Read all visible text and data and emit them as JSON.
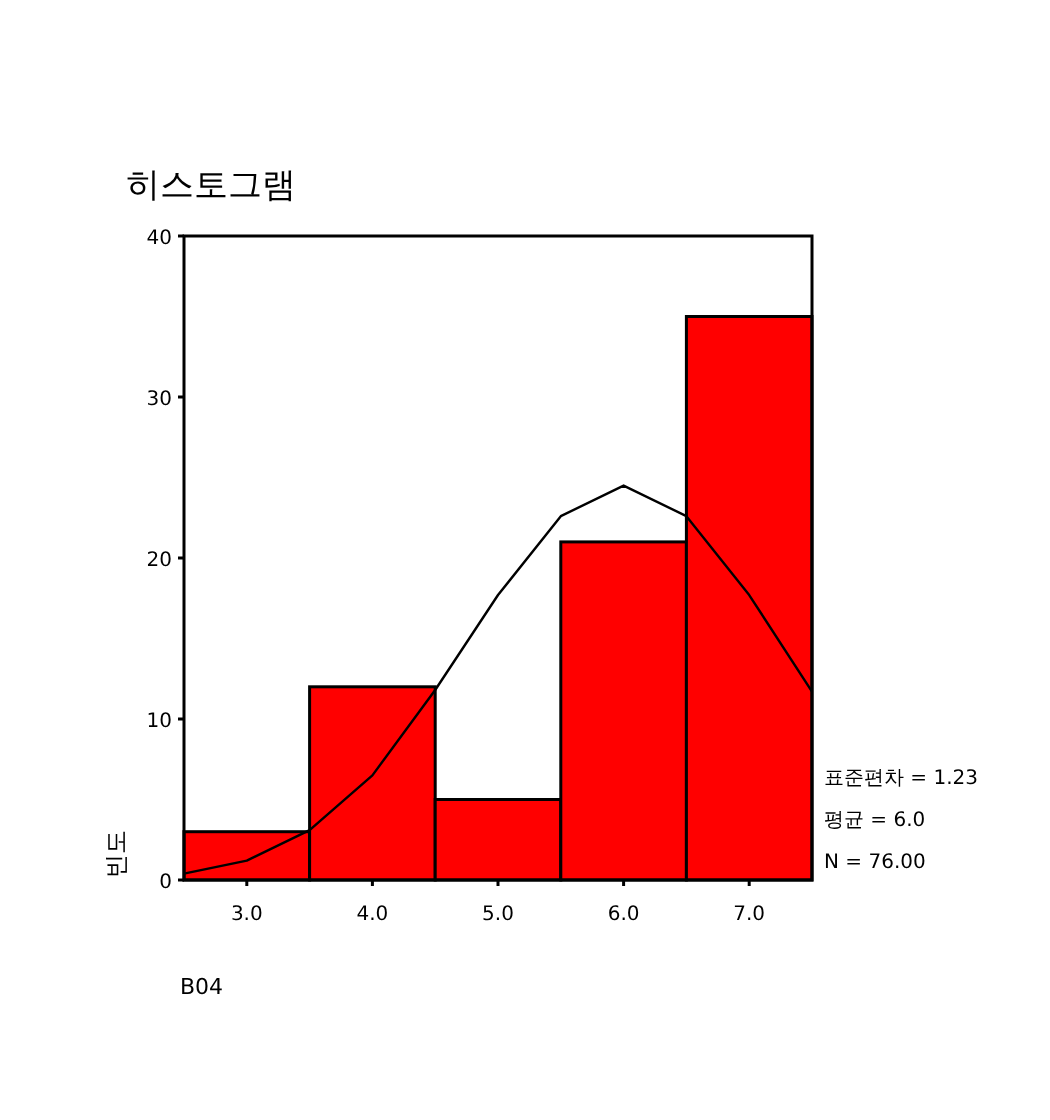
{
  "chart_data": {
    "type": "histogram",
    "title": "히스토그램",
    "xlabel": "B04",
    "ylabel": "빈도",
    "bins": [
      2.5,
      3.5,
      4.5,
      5.5,
      6.5,
      7.5
    ],
    "values": [
      3,
      12,
      5,
      21,
      35
    ],
    "color": "#ff0000",
    "series": [
      {
        "type": "line",
        "color": "#000000",
        "x": [
          2.5,
          3.0,
          3.5,
          4.0,
          4.5,
          5.0,
          5.5,
          6.0,
          6.5,
          7.0,
          7.5
        ],
        "values": [
          0.4,
          1.2,
          3.1,
          6.5,
          11.8,
          17.7,
          22.6,
          24.5,
          22.6,
          17.7,
          11.7
        ]
      }
    ],
    "xlim": [
      2.5,
      7.5
    ],
    "ylim": [
      0,
      40
    ],
    "xticks": [
      {
        "value": 3,
        "label": "3.0"
      },
      {
        "value": 4,
        "label": "4.0"
      },
      {
        "value": 5,
        "label": "5.0"
      },
      {
        "value": 6,
        "label": "6.0"
      },
      {
        "value": 7,
        "label": "7.0"
      }
    ],
    "yticks": [
      0,
      10,
      20,
      30,
      40
    ],
    "annotations": [
      "표준편차 = 1.23",
      "평균 = 6.0",
      "N = 76.00"
    ],
    "grid": false
  }
}
